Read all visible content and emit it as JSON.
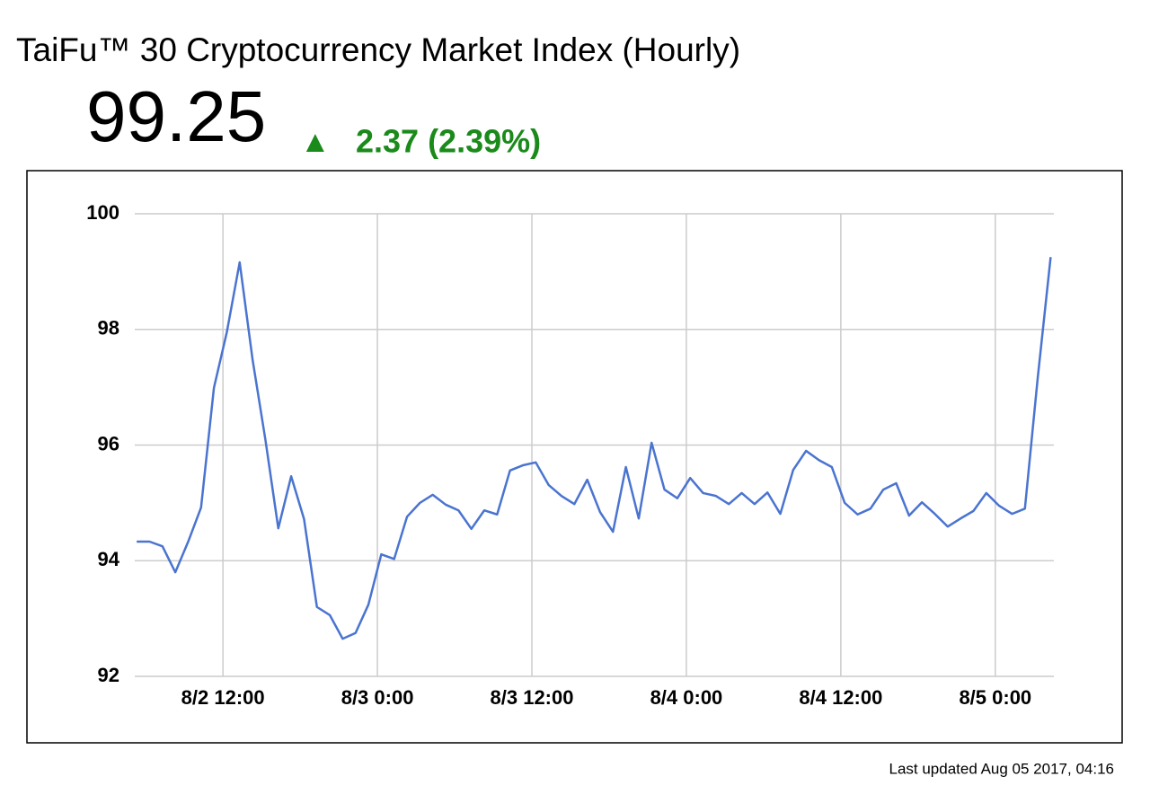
{
  "chart_data": {
    "type": "line",
    "title": "TaiFu™ 30 Cryptocurrency Market Index (Hourly)",
    "x": [
      5.3,
      6.3,
      7.3,
      8.3,
      9.3,
      10.3,
      11.3,
      12.3,
      13.3,
      14.3,
      15.3,
      16.3,
      17.3,
      18.3,
      19.3,
      20.3,
      21.3,
      22.3,
      23.3,
      24.3,
      25.3,
      26.3,
      27.3,
      28.3,
      29.3,
      30.3,
      31.3,
      32.3,
      33.3,
      34.3,
      35.3,
      36.3,
      37.3,
      38.3,
      39.3,
      40.3,
      41.3,
      42.3,
      43.3,
      44.3,
      45.3,
      46.3,
      47.3,
      48.3,
      49.3,
      50.3,
      51.3,
      52.3,
      53.3,
      54.3,
      55.3,
      56.3,
      57.3,
      58.3,
      59.3,
      60.3,
      61.3,
      62.3,
      63.3,
      64.3,
      65.3,
      66.3,
      67.3,
      68.3,
      69.3,
      70.3,
      71.3,
      72.3,
      73.3,
      74.3,
      75.3,
      76.3
    ],
    "series": [
      {
        "name": "TaiFu 30",
        "color": "#4a74d0",
        "values": [
          94.33,
          94.33,
          94.25,
          93.8,
          94.33,
          94.92,
          96.99,
          97.95,
          99.16,
          97.48,
          96.09,
          94.56,
          95.46,
          94.72,
          93.2,
          93.06,
          92.65,
          92.75,
          93.24,
          94.11,
          94.03,
          94.76,
          95.0,
          95.14,
          94.97,
          94.87,
          94.55,
          94.87,
          94.8,
          95.56,
          95.65,
          95.7,
          95.31,
          95.12,
          94.98,
          95.4,
          94.84,
          94.5,
          95.62,
          94.73,
          96.04,
          95.23,
          95.08,
          95.43,
          95.17,
          95.12,
          94.98,
          95.17,
          94.98,
          95.18,
          94.81,
          95.57,
          95.9,
          95.74,
          95.62,
          95.0,
          94.8,
          94.9,
          95.23,
          95.34,
          94.78,
          95.01,
          94.81,
          94.59,
          94.73,
          94.86,
          95.17,
          94.95,
          94.81,
          94.9,
          97.17,
          99.25
        ]
      }
    ],
    "xlim": [
      5.15,
      76.55
    ],
    "xticks": [
      {
        "value": 12,
        "label": "8/2 12:00"
      },
      {
        "value": 24,
        "label": "8/3 0:00"
      },
      {
        "value": 36,
        "label": "8/3 12:00"
      },
      {
        "value": 48,
        "label": "8/4 0:00"
      },
      {
        "value": 60,
        "label": "8/4 12:00"
      },
      {
        "value": 72,
        "label": "8/5 0:00"
      }
    ],
    "ylim": [
      92,
      100
    ],
    "yticks": [
      92,
      94,
      96,
      98,
      100
    ],
    "grid": true
  },
  "quote": {
    "value": "99.25",
    "arrow": "▲",
    "change": "2.37 (2.39%)"
  },
  "footer": "Last updated Aug 05 2017, 04:16"
}
